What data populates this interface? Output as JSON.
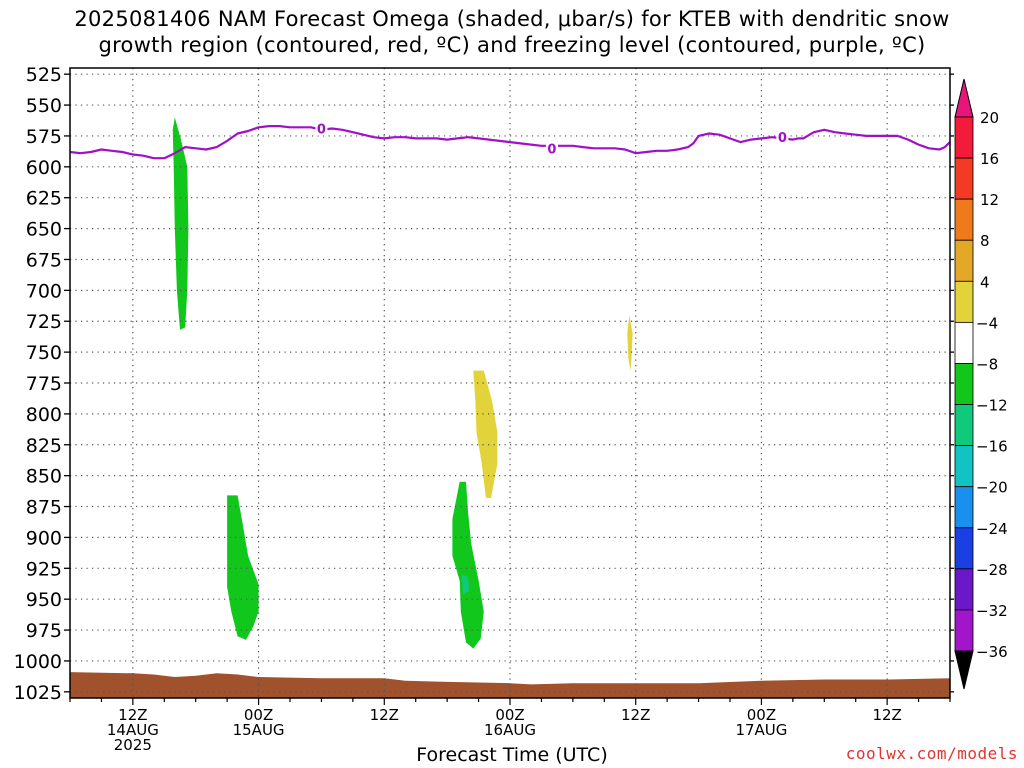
{
  "chart_title": {
    "line1": "2025081406 NAM Forecast Omega (shaded, μbar/s) for KTEB with dendritic snow",
    "line2": "growth region (contoured, red, ºC) and freezing level (contoured, purple, ºC)"
  },
  "credit": "coolwx.com/models",
  "chart_data": {
    "type": "heatmap",
    "xlabel": "Forecast Time (UTC)",
    "x_unit": "hours since 2025081406",
    "xlim": [
      0,
      84
    ],
    "y_axis": {
      "reversed": true,
      "ylim": [
        1030,
        520
      ],
      "ticks": [
        525,
        550,
        575,
        600,
        625,
        650,
        675,
        700,
        725,
        750,
        775,
        800,
        825,
        850,
        875,
        900,
        925,
        950,
        975,
        1000,
        1025
      ]
    },
    "x_ticks": [
      {
        "x": 6,
        "lines": [
          "12Z",
          "14AUG",
          "2025"
        ]
      },
      {
        "x": 18,
        "lines": [
          "00Z",
          "15AUG"
        ]
      },
      {
        "x": 30,
        "lines": [
          "12Z"
        ]
      },
      {
        "x": 42,
        "lines": [
          "00Z",
          "16AUG"
        ]
      },
      {
        "x": 54,
        "lines": [
          "12Z"
        ]
      },
      {
        "x": 66,
        "lines": [
          "00Z",
          "17AUG"
        ]
      },
      {
        "x": 78,
        "lines": [
          "12Z"
        ]
      }
    ],
    "grid": true,
    "colorbar": {
      "levels": [
        20,
        16,
        12,
        8,
        4,
        -4,
        -8,
        -12,
        -16,
        -20,
        -24,
        -28,
        -32,
        -36
      ],
      "colors": [
        "#f21c3a",
        "#f23b22",
        "#ef7a1c",
        "#e3a828",
        "#e3d33a",
        "#ffffff",
        "#12c71c",
        "#10c97a",
        "#12c3c3",
        "#1a90ee",
        "#1a3fe3",
        "#6a18c8",
        "#a016c8",
        "#9e9e9e"
      ],
      "top_arrow_color": "#e8157a",
      "bottom_arrow_color": "#000000"
    },
    "shaded_regions": [
      {
        "value_range": [
          -8,
          -4
        ],
        "color": "#12c71c",
        "points": [
          [
            10.0,
            560
          ],
          [
            10.6,
            578
          ],
          [
            11.2,
            600
          ],
          [
            11.3,
            650
          ],
          [
            11.2,
            700
          ],
          [
            11.0,
            730
          ],
          [
            10.5,
            732
          ],
          [
            10.2,
            700
          ],
          [
            10.0,
            650
          ],
          [
            9.9,
            600
          ],
          [
            9.8,
            570
          ]
        ]
      },
      {
        "value_range": [
          -8,
          -4
        ],
        "color": "#12c71c",
        "points": [
          [
            15.0,
            866
          ],
          [
            16.0,
            866
          ],
          [
            16.5,
            890
          ],
          [
            17.0,
            915
          ],
          [
            18.0,
            938
          ],
          [
            18.0,
            960
          ],
          [
            17.5,
            972
          ],
          [
            16.8,
            983
          ],
          [
            16.0,
            980
          ],
          [
            15.4,
            960
          ],
          [
            15.0,
            940
          ],
          [
            15.0,
            900
          ]
        ]
      },
      {
        "value_range": [
          -8,
          -4
        ],
        "color": "#12c71c",
        "points": [
          [
            37.2,
            855
          ],
          [
            37.8,
            855
          ],
          [
            38.0,
            880
          ],
          [
            38.3,
            905
          ],
          [
            39.0,
            935
          ],
          [
            39.5,
            960
          ],
          [
            39.2,
            982
          ],
          [
            38.5,
            990
          ],
          [
            37.8,
            985
          ],
          [
            37.3,
            960
          ],
          [
            37.2,
            935
          ],
          [
            36.5,
            915
          ],
          [
            36.5,
            885
          ]
        ]
      },
      {
        "value_range": [
          -12,
          -8
        ],
        "color": "#10c97a",
        "points": [
          [
            37.4,
            930
          ],
          [
            38.0,
            932
          ],
          [
            38.1,
            944
          ],
          [
            37.5,
            946
          ]
        ]
      },
      {
        "value_range": [
          4,
          8
        ],
        "color": "#e3d33a",
        "points": [
          [
            38.5,
            765
          ],
          [
            39.5,
            765
          ],
          [
            40.3,
            790
          ],
          [
            40.8,
            815
          ],
          [
            40.8,
            840
          ],
          [
            40.2,
            868
          ],
          [
            39.7,
            868
          ],
          [
            39.3,
            840
          ],
          [
            38.8,
            815
          ],
          [
            38.7,
            790
          ]
        ]
      },
      {
        "value_range": [
          4,
          8
        ],
        "color": "#e3d33a",
        "points": [
          [
            53.4,
            720
          ],
          [
            53.7,
            735
          ],
          [
            53.6,
            755
          ],
          [
            53.5,
            765
          ],
          [
            53.3,
            755
          ],
          [
            53.2,
            735
          ]
        ]
      }
    ],
    "ground": {
      "color": "#a0522d",
      "top": [
        [
          0,
          1009
        ],
        [
          6,
          1010
        ],
        [
          8,
          1011
        ],
        [
          10,
          1013
        ],
        [
          12,
          1012
        ],
        [
          14,
          1010
        ],
        [
          16,
          1011
        ],
        [
          18,
          1013
        ],
        [
          24,
          1014
        ],
        [
          30,
          1014
        ],
        [
          32,
          1016
        ],
        [
          36,
          1017
        ],
        [
          42,
          1018
        ],
        [
          44,
          1019
        ],
        [
          48,
          1018
        ],
        [
          54,
          1018
        ],
        [
          60,
          1018
        ],
        [
          66,
          1016
        ],
        [
          72,
          1015
        ],
        [
          78,
          1015
        ],
        [
          84,
          1014
        ]
      ]
    },
    "freezing_level": {
      "color": "#a010c8",
      "label": "0",
      "label_positions": [
        [
          24,
          569
        ],
        [
          46,
          585
        ],
        [
          68,
          576
        ]
      ],
      "points": [
        [
          0,
          588
        ],
        [
          1,
          589
        ],
        [
          2,
          588
        ],
        [
          3,
          586
        ],
        [
          4,
          587
        ],
        [
          5,
          588
        ],
        [
          6,
          590
        ],
        [
          7,
          591
        ],
        [
          8,
          593
        ],
        [
          9,
          593
        ],
        [
          10,
          589
        ],
        [
          11,
          584
        ],
        [
          12,
          585
        ],
        [
          13,
          586
        ],
        [
          14,
          584
        ],
        [
          15,
          579
        ],
        [
          16,
          573
        ],
        [
          17,
          571
        ],
        [
          18,
          568
        ],
        [
          19,
          567
        ],
        [
          20,
          567
        ],
        [
          21,
          568
        ],
        [
          22,
          568
        ],
        [
          23,
          568
        ],
        [
          24,
          570
        ],
        [
          25,
          569
        ],
        [
          26,
          570
        ],
        [
          27,
          572
        ],
        [
          28,
          574
        ],
        [
          29,
          576
        ],
        [
          30,
          577
        ],
        [
          31,
          576
        ],
        [
          32,
          576
        ],
        [
          33,
          577
        ],
        [
          34,
          577
        ],
        [
          35,
          577
        ],
        [
          36,
          578
        ],
        [
          37,
          577
        ],
        [
          38,
          576
        ],
        [
          39,
          577
        ],
        [
          40,
          578
        ],
        [
          41,
          579
        ],
        [
          42,
          580
        ],
        [
          43,
          581
        ],
        [
          44,
          582
        ],
        [
          45,
          583
        ],
        [
          46,
          583
        ],
        [
          47,
          583
        ],
        [
          48,
          583
        ],
        [
          49,
          584
        ],
        [
          50,
          585
        ],
        [
          51,
          585
        ],
        [
          52,
          585
        ],
        [
          53,
          586
        ],
        [
          54,
          589
        ],
        [
          55,
          588
        ],
        [
          56,
          587
        ],
        [
          57,
          587
        ],
        [
          58,
          586
        ],
        [
          59,
          584
        ],
        [
          59.5,
          581
        ],
        [
          60,
          575
        ],
        [
          61,
          573
        ],
        [
          62,
          574
        ],
        [
          63,
          577
        ],
        [
          64,
          580
        ],
        [
          65,
          578
        ],
        [
          66,
          577
        ],
        [
          67,
          576
        ],
        [
          68,
          577
        ],
        [
          69,
          578
        ],
        [
          69.5,
          577
        ],
        [
          70,
          577
        ],
        [
          71,
          572
        ],
        [
          72,
          570
        ],
        [
          73,
          572
        ],
        [
          74,
          573
        ],
        [
          75,
          574
        ],
        [
          76,
          575
        ],
        [
          77,
          575
        ],
        [
          78,
          575
        ],
        [
          79,
          575
        ],
        [
          80,
          578
        ],
        [
          81,
          582
        ],
        [
          82,
          585
        ],
        [
          83,
          586
        ],
        [
          83.5,
          584
        ],
        [
          84,
          580
        ]
      ]
    }
  }
}
